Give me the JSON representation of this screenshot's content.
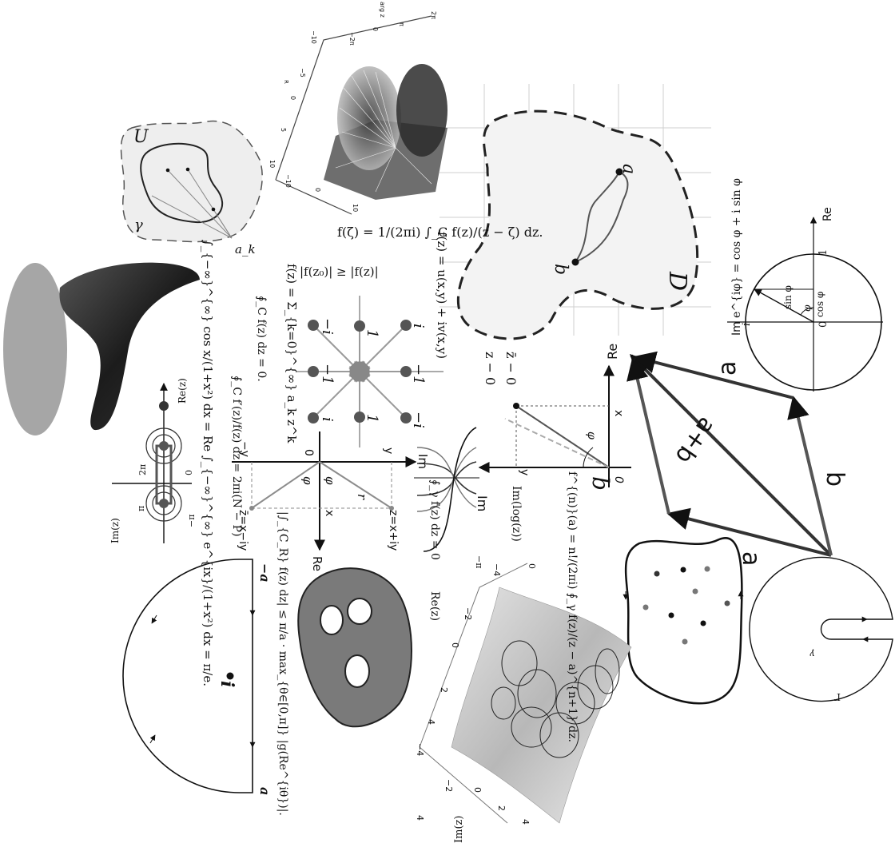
{
  "colors": {
    "ink": "#111111",
    "gray": "#8a8a8a",
    "light": "#f4f4f4",
    "dark": "#2a2a2a",
    "blob": "#7a7a7a"
  },
  "top_right_unit_circle": {
    "euler": "e^{iφ} = cos φ + i sin φ",
    "label_im": "Im",
    "label_re": "Re",
    "label_i": "i",
    "label_one": "1",
    "label_zero": "0",
    "label_sin": "sin φ",
    "label_cos": "cos φ",
    "label_phi": "φ"
  },
  "keyhole": {
    "gamma_small": "γ",
    "gamma_big": "Γ"
  },
  "vector_sum": {
    "a_top": "a",
    "a_bottom": "a",
    "b_right": "b",
    "sum": "a+b"
  },
  "domain_D": {
    "label": "D",
    "pa": "a",
    "pb": "b"
  },
  "cauchy_formula": "f(ζ) = 1/(2πi) ∫_C f(z)/(z − ζ) dz.",
  "power_series": "f(z) = Σ_{k=0}^{∞} a_k z^k",
  "max_modulus": "|f(z₀)| ≥ |f(z)|",
  "uv_form": "f(z) = u(x,y) + iv(x,y)",
  "im_log": "Im(log(z))",
  "polar": {
    "re": "Re",
    "im": "Im",
    "x": "x",
    "y": "y",
    "phi": "φ",
    "zero": "0",
    "z": "z",
    "zbar": "z̄",
    "z_minus": "z − 0",
    "zbar_minus": "z̄ − 0"
  },
  "cauchy_derivative": "f^{(n)}(a) = n!/(2πi) ∮_γ f(z)/(z − a)^{n+1} dz.",
  "cauchy_theorem": "∮_γ f(z) dz = 0",
  "re_z": "Re(z)",
  "im_z": "Im(z)",
  "surface_axes": {
    "t4a": "4",
    "t2a": "2",
    "t0a": "0",
    "tm2a": "−2",
    "tm4a": "−4",
    "t4b": "4",
    "t2b": "2",
    "t0b": "0",
    "tm2b": "−2",
    "tm4b": "−4",
    "pi": "π",
    "mpi": "−π",
    "zero": "0"
  },
  "roots_unity": {
    "one": "1",
    "mone": "−1",
    "i": "i",
    "mi": "−i"
  },
  "argument_principle": "∮_C f′(z)/f(z) dz = 2πi(N − P)",
  "cauchy_goursat": "∮_C f(z) dz = 0.",
  "ml_estimate": "|∫_{C_R} f(z) dz| ≤ π/a · max_{θ∈[0,π]} |g(Re^{iθ})|.",
  "conjugate": {
    "z": "z=x+iy",
    "zbar": "z̄=x−iy",
    "re": "Re",
    "im": "Im",
    "x": "x",
    "y": "y",
    "my": "−y",
    "r": "r",
    "phi": "φ",
    "mphi": "φ",
    "zero": "0"
  },
  "integral_1": "∫_{−∞}^{∞} cos x/(1+x²) dx = Re ∫_{−∞}^{∞} e^{ix}/(1+x²) dx = π/e.",
  "riemann_sheets": {
    "re": "Re(z)",
    "im": "Im(z)",
    "pi": "π",
    "mpi": "−π",
    "two_pi": "2π",
    "zero": "0"
  },
  "semicircle": {
    "a": "a",
    "ma": "−a",
    "i": "i"
  },
  "winding": {
    "U": "U",
    "gamma": "γ",
    "ak": "a_k"
  },
  "axes3d": {
    "a": "−10",
    "b": "−5",
    "c": "0",
    "d": "5",
    "e": "10",
    "p": "2π",
    "q": "π",
    "r": "0",
    "s": "−π",
    "t": "−2π",
    "u": "10",
    "v": "5",
    "w": "0",
    "x": "−5",
    "y": "−10",
    "lbl": "arg z",
    "R": "R"
  }
}
